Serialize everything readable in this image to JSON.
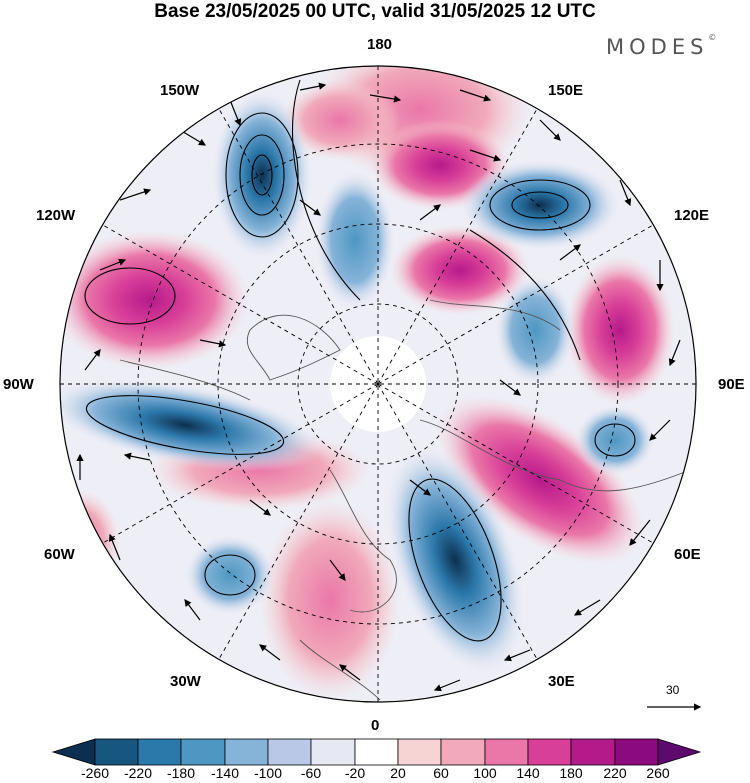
{
  "title": "Base 23/05/2025 00 UTC, valid 31/05/2025 12 UTC",
  "brand": {
    "name": "MODES",
    "mark": "©"
  },
  "longitude_labels": {
    "top": "180",
    "bottom": "0",
    "left": "90W",
    "right": "90E",
    "upper_left": "150W",
    "upper_right": "150E",
    "mid_upper_left": "120W",
    "mid_upper_right": "120E",
    "mid_lower_left": "60W",
    "mid_lower_right": "60E",
    "lower_left": "30W",
    "lower_right": "30E"
  },
  "wind_reference": {
    "value": "30"
  },
  "colorbar": {
    "labels": [
      "-260",
      "-220",
      "-180",
      "-140",
      "-100",
      "-60",
      "-20",
      "20",
      "60",
      "100",
      "140",
      "180",
      "220",
      "260"
    ],
    "colors": [
      "#0d2f4f",
      "#17577f",
      "#2b78aa",
      "#4e97c2",
      "#86b3d8",
      "#b9c8e6",
      "#e6e8f4",
      "#ffffff",
      "#f7d4d4",
      "#f1a9bb",
      "#ea77a8",
      "#d83f98",
      "#b51a8a",
      "#8b0a7f",
      "#5c0a6e"
    ]
  }
}
